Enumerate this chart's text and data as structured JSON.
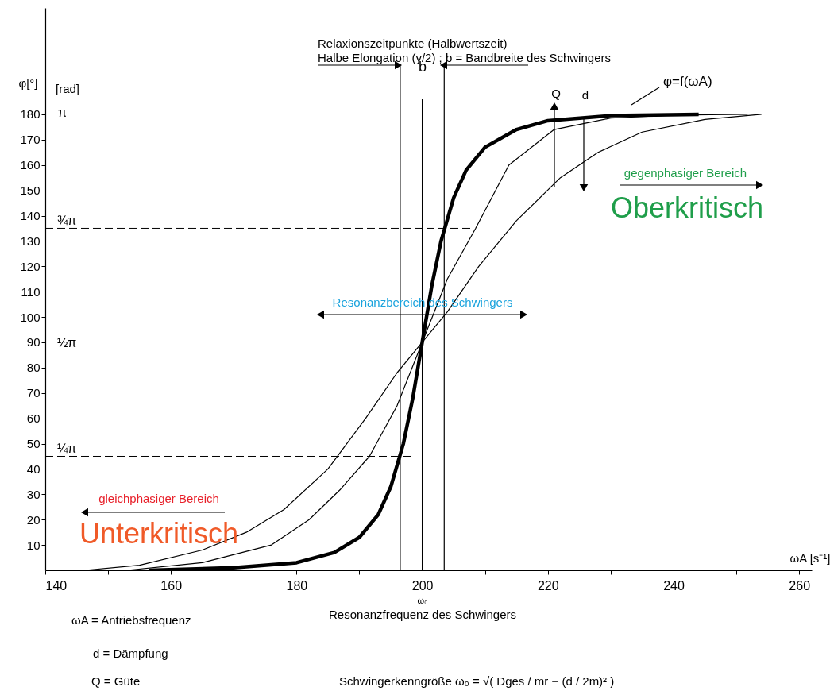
{
  "chart_data": {
    "type": "line",
    "title": "Relaxionszeitpunkte (Halbwertszeit)",
    "subtitle": "Halbe Elongation (y/2) ;  b = Bandbreite des Schwingers",
    "xlabel": "ωA [s⁻¹]",
    "ylabel": "φ[°]",
    "xlim": [
      140,
      262
    ],
    "ylim": [
      0,
      222
    ],
    "xticks": [
      140,
      {
        "value": 150,
        "label": null
      },
      160,
      {
        "value": 170,
        "label": null
      },
      180,
      {
        "value": 190,
        "label": null
      },
      200,
      {
        "value": 210,
        "label": null
      },
      220,
      {
        "value": 230,
        "label": null
      },
      240,
      {
        "value": 250,
        "label": null
      },
      260
    ],
    "yticks": [
      10,
      20,
      30,
      40,
      50,
      60,
      70,
      80,
      90,
      100,
      110,
      120,
      130,
      140,
      150,
      160,
      170,
      180
    ],
    "series": [
      {
        "name": "φ=f(ωA)",
        "color": "#000000",
        "x": [
          156.5,
          170,
          180,
          186,
          190,
          193,
          195,
          197,
          198.5,
          200,
          201.5,
          203,
          205,
          207,
          210,
          215,
          220,
          230,
          244
        ],
        "values": [
          0,
          1,
          3,
          7,
          13,
          22,
          33,
          50,
          68,
          90,
          112,
          130,
          147,
          158,
          167,
          174,
          177.5,
          179.5,
          180
        ]
      },
      {
        "color": "#000000",
        "x": [
          153,
          165,
          176,
          182,
          187,
          191.6,
          196,
          200,
          204,
          208.5,
          213.8,
          221,
          230,
          240,
          251.8
        ],
        "values": [
          0,
          3,
          10,
          20,
          32,
          45,
          65,
          90,
          115,
          135,
          160,
          174,
          178.5,
          179.7,
          180
        ]
      },
      {
        "color": "#000000",
        "x": [
          146.3,
          155,
          165,
          172,
          178,
          185,
          191,
          196,
          200,
          204,
          209,
          215,
          222,
          228,
          235,
          245,
          254
        ],
        "values": [
          0,
          2,
          8,
          15,
          24,
          40,
          60,
          78,
          90,
          102,
          120,
          138,
          155,
          165,
          173,
          178,
          180
        ]
      },
      {
        "color": "#000000",
        "line_style": "dashed",
        "x": [
          140,
          207.7
        ],
        "values": [
          135,
          135
        ]
      },
      {
        "color": "#000000",
        "line_style": "dashed",
        "x": [
          140,
          198.9
        ],
        "values": [
          45,
          45
        ]
      }
    ],
    "ref_lines": [
      {
        "axis": "x",
        "value": 196.5,
        "color": "#000000"
      },
      {
        "axis": "x",
        "value": 200,
        "color": "#000000"
      },
      {
        "axis": "x",
        "value": 203.5,
        "color": "#000000"
      }
    ],
    "annotations": [
      "b",
      "Q",
      "d",
      "gegenphasiger Bereich",
      "Oberkritisch",
      "Resonanzbereich des Schwingers",
      "gleichphasiger Bereich",
      "Unterkritisch",
      "ω₀",
      "Resonanzfrequenz des Schwingers",
      "ωA = Antriebsfrequenz",
      "d  = Dämpfung",
      "Q  = Güte",
      "Schwingerkenngröße  ω₀ = √( Dges / mr − (d / 2m)² )",
      "[rad]",
      "π",
      "¾π",
      "½π",
      "¼π"
    ]
  }
}
